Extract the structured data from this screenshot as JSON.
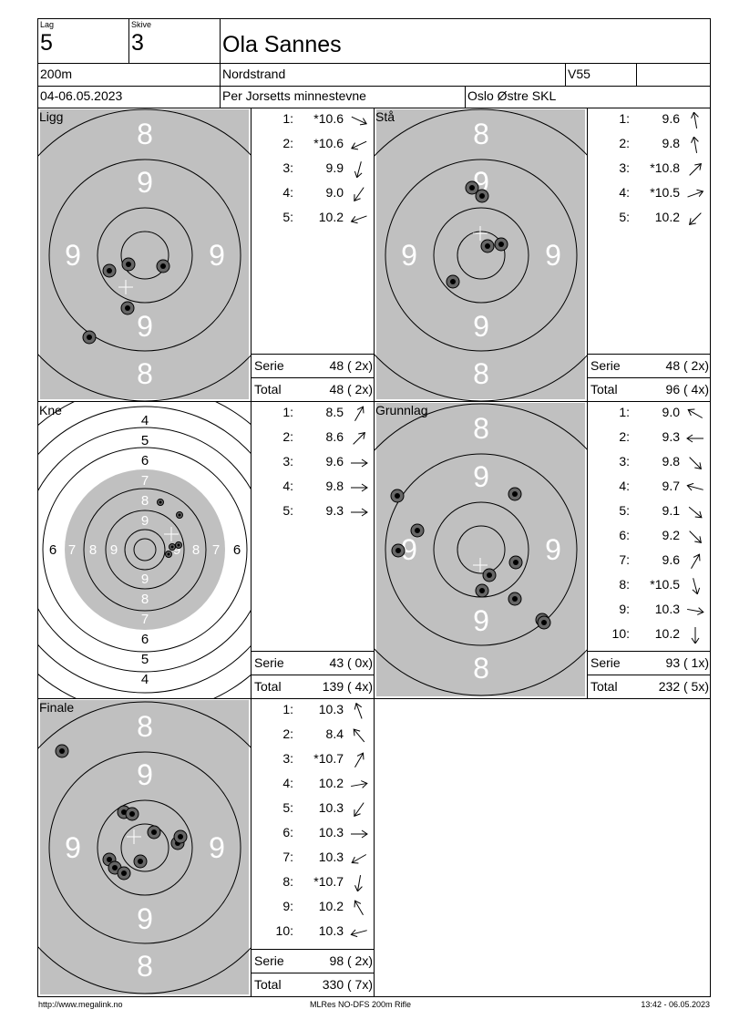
{
  "header": {
    "lag_label": "Lag",
    "lag": "5",
    "skive_label": "Skive",
    "skive": "3",
    "name": "Ola Sannes",
    "distance": "200m",
    "club_short": "Nordstrand",
    "class": "V55",
    "class_extra": "",
    "date": "04-06.05.2023",
    "competition": "Per Jorsetts minnestevne",
    "organizer": "Oslo Østre SKL"
  },
  "panels": [
    {
      "title": "Ligg",
      "target": "standard",
      "serie_label": "Serie",
      "serie": "48 ( 2x)",
      "total_label": "Total",
      "total": "48 ( 2x)",
      "shots": [
        {
          "n": "1:",
          "value": "*10.6",
          "dir_deg": -25
        },
        {
          "n": "2:",
          "value": "*10.6",
          "dir_deg": 205
        },
        {
          "n": "3:",
          "value": "9.9",
          "dir_deg": 255
        },
        {
          "n": "4:",
          "value": "9.0",
          "dir_deg": 235
        },
        {
          "n": "5:",
          "value": "10.2",
          "dir_deg": 200
        }
      ],
      "ring_labels": [
        "8",
        "9",
        "9",
        "9",
        "9",
        "8"
      ]
    },
    {
      "title": "Stå",
      "target": "standard",
      "serie_label": "Serie",
      "serie": "48 ( 2x)",
      "total_label": "Total",
      "total": "96 ( 4x)",
      "shots": [
        {
          "n": "1:",
          "value": "9.6",
          "dir_deg": 100
        },
        {
          "n": "2:",
          "value": "9.8",
          "dir_deg": 100
        },
        {
          "n": "3:",
          "value": "*10.8",
          "dir_deg": 45
        },
        {
          "n": "4:",
          "value": "*10.5",
          "dir_deg": 20
        },
        {
          "n": "5:",
          "value": "10.2",
          "dir_deg": 225
        }
      ],
      "ring_labels": [
        "8",
        "9",
        "9",
        "9",
        "9",
        "8"
      ]
    },
    {
      "title": "Kne",
      "target": "kneeling",
      "serie_label": "Serie",
      "serie": "43 ( 0x)",
      "total_label": "Total",
      "total": "139 ( 4x)",
      "shots": [
        {
          "n": "1:",
          "value": "8.5",
          "dir_deg": 60
        },
        {
          "n": "2:",
          "value": "8.6",
          "dir_deg": 45
        },
        {
          "n": "3:",
          "value": "9.6",
          "dir_deg": 0
        },
        {
          "n": "4:",
          "value": "9.8",
          "dir_deg": 0
        },
        {
          "n": "5:",
          "value": "9.3",
          "dir_deg": 0
        }
      ],
      "ring_labels": [
        "4",
        "5",
        "6",
        "7",
        "8",
        "9",
        "9",
        "8",
        "7",
        "6",
        "5",
        "4",
        "6",
        "7",
        "8",
        "9",
        "9",
        "8",
        "7",
        "6"
      ]
    },
    {
      "title": "Grunnlag",
      "target": "standard",
      "serie_label": "Serie",
      "serie": "93 ( 1x)",
      "total_label": "Total",
      "total": "232 ( 5x)",
      "shots": [
        {
          "n": "1:",
          "value": "9.0",
          "dir_deg": 150
        },
        {
          "n": "2:",
          "value": "9.3",
          "dir_deg": 180
        },
        {
          "n": "3:",
          "value": "9.8",
          "dir_deg": -45
        },
        {
          "n": "4:",
          "value": "9.7",
          "dir_deg": 165
        },
        {
          "n": "5:",
          "value": "9.1",
          "dir_deg": -40
        },
        {
          "n": "6:",
          "value": "9.2",
          "dir_deg": -45
        },
        {
          "n": "7:",
          "value": "9.6",
          "dir_deg": 60
        },
        {
          "n": "8:",
          "value": "*10.5",
          "dir_deg": -75
        },
        {
          "n": "9:",
          "value": "10.3",
          "dir_deg": -10
        },
        {
          "n": "10:",
          "value": "10.2",
          "dir_deg": -90
        }
      ],
      "ring_labels": [
        "8",
        "9",
        "9",
        "9",
        "9",
        "8"
      ]
    },
    {
      "title": "Finale",
      "target": "standard",
      "serie_label": "Serie",
      "serie": "98 ( 2x)",
      "total_label": "Total",
      "total": "330 ( 7x)",
      "shots": [
        {
          "n": "1:",
          "value": "10.3",
          "dir_deg": 110
        },
        {
          "n": "2:",
          "value": "8.4",
          "dir_deg": 130
        },
        {
          "n": "3:",
          "value": "*10.7",
          "dir_deg": 60
        },
        {
          "n": "4:",
          "value": "10.2",
          "dir_deg": 10
        },
        {
          "n": "5:",
          "value": "10.3",
          "dir_deg": 235
        },
        {
          "n": "6:",
          "value": "10.3",
          "dir_deg": 0
        },
        {
          "n": "7:",
          "value": "10.3",
          "dir_deg": 210
        },
        {
          "n": "8:",
          "value": "*10.7",
          "dir_deg": 260
        },
        {
          "n": "9:",
          "value": "10.2",
          "dir_deg": 120
        },
        {
          "n": "10:",
          "value": "10.3",
          "dir_deg": 195
        }
      ],
      "ring_labels": [
        "8",
        "9",
        "9",
        "9",
        "9",
        "8"
      ]
    }
  ],
  "footer": {
    "left": "http://www.megalink.no",
    "center": "MLRes NO-DFS 200m Rifle",
    "right": "13:42 - 06.05.2023"
  },
  "colors": {
    "target_gray": "#c0c0c0",
    "ring": "#000000",
    "label_on_gray": "#ffffff"
  }
}
